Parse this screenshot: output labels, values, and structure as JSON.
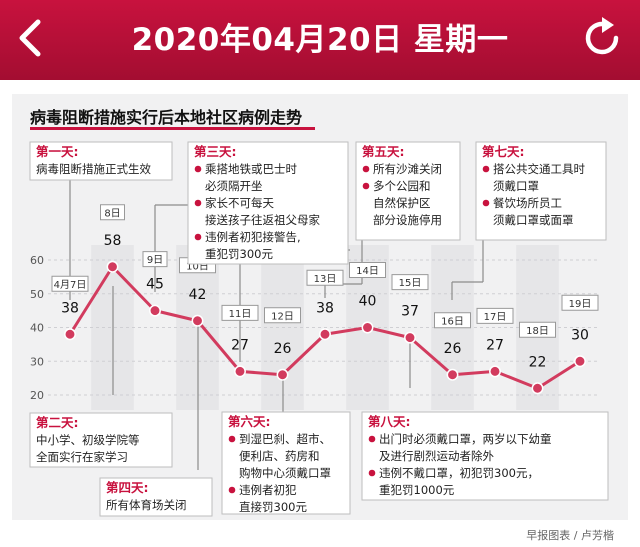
{
  "header": {
    "date": "2020年04月20日 星期一",
    "back_icon": "chevron-left-icon",
    "refresh_icon": "refresh-icon",
    "color": "#c8123e"
  },
  "chart_data": {
    "type": "line",
    "title": "病毒阻断措施实行后本地社区病例走势",
    "credit": "早报图表 / 卢芳楷",
    "ylim": [
      20,
      60
    ],
    "yticks": [
      20,
      30,
      40,
      50,
      60
    ],
    "line_color": "#d23b5e",
    "series": [
      {
        "x": [
          "4月7日",
          "8日",
          "9日",
          "10日",
          "11日",
          "12日",
          "13日",
          "14日",
          "15日",
          "16日",
          "17日",
          "18日",
          "19日"
        ],
        "values": [
          38,
          58,
          45,
          42,
          27,
          26,
          38,
          40,
          37,
          26,
          27,
          22,
          30
        ]
      }
    ],
    "annotations": [
      {
        "day": "第一天:",
        "lines": [
          "病毒阻断措施正式生效"
        ]
      },
      {
        "day": "第二天:",
        "lines": [
          "中小学、初级学院等",
          "全面实行在家学习"
        ]
      },
      {
        "day": "第三天:",
        "lines": [
          "●乘搭地铁或巴士时",
          "必须隔开坐",
          "●家长不可每天",
          "接送孩子往返祖父母家",
          "●违例者初犯接警告,",
          "重犯罚300元"
        ]
      },
      {
        "day": "第四天:",
        "lines": [
          "所有体育场关闭"
        ]
      },
      {
        "day": "第五天:",
        "lines": [
          "●所有沙滩关闭",
          "●多个公园和",
          "自然保护区",
          "部分设施停用"
        ]
      },
      {
        "day": "第六天:",
        "lines": [
          "●到湿巴刹、超市、",
          "便利店、药房和",
          "购物中心须戴口罩",
          "●违例者初犯",
          "直接罚300元"
        ]
      },
      {
        "day": "第七天:",
        "lines": [
          "●搭公共交通工具时",
          "须戴口罩",
          "●餐饮场所员工",
          "须戴口罩或面罩"
        ]
      },
      {
        "day": "第八天:",
        "lines": [
          "●出门时必须戴口罩，两岁以下幼童",
          "及进行剧烈运动者除外",
          "●违例不戴口罩，初犯罚300元，",
          "重犯罚1000元"
        ]
      }
    ]
  }
}
